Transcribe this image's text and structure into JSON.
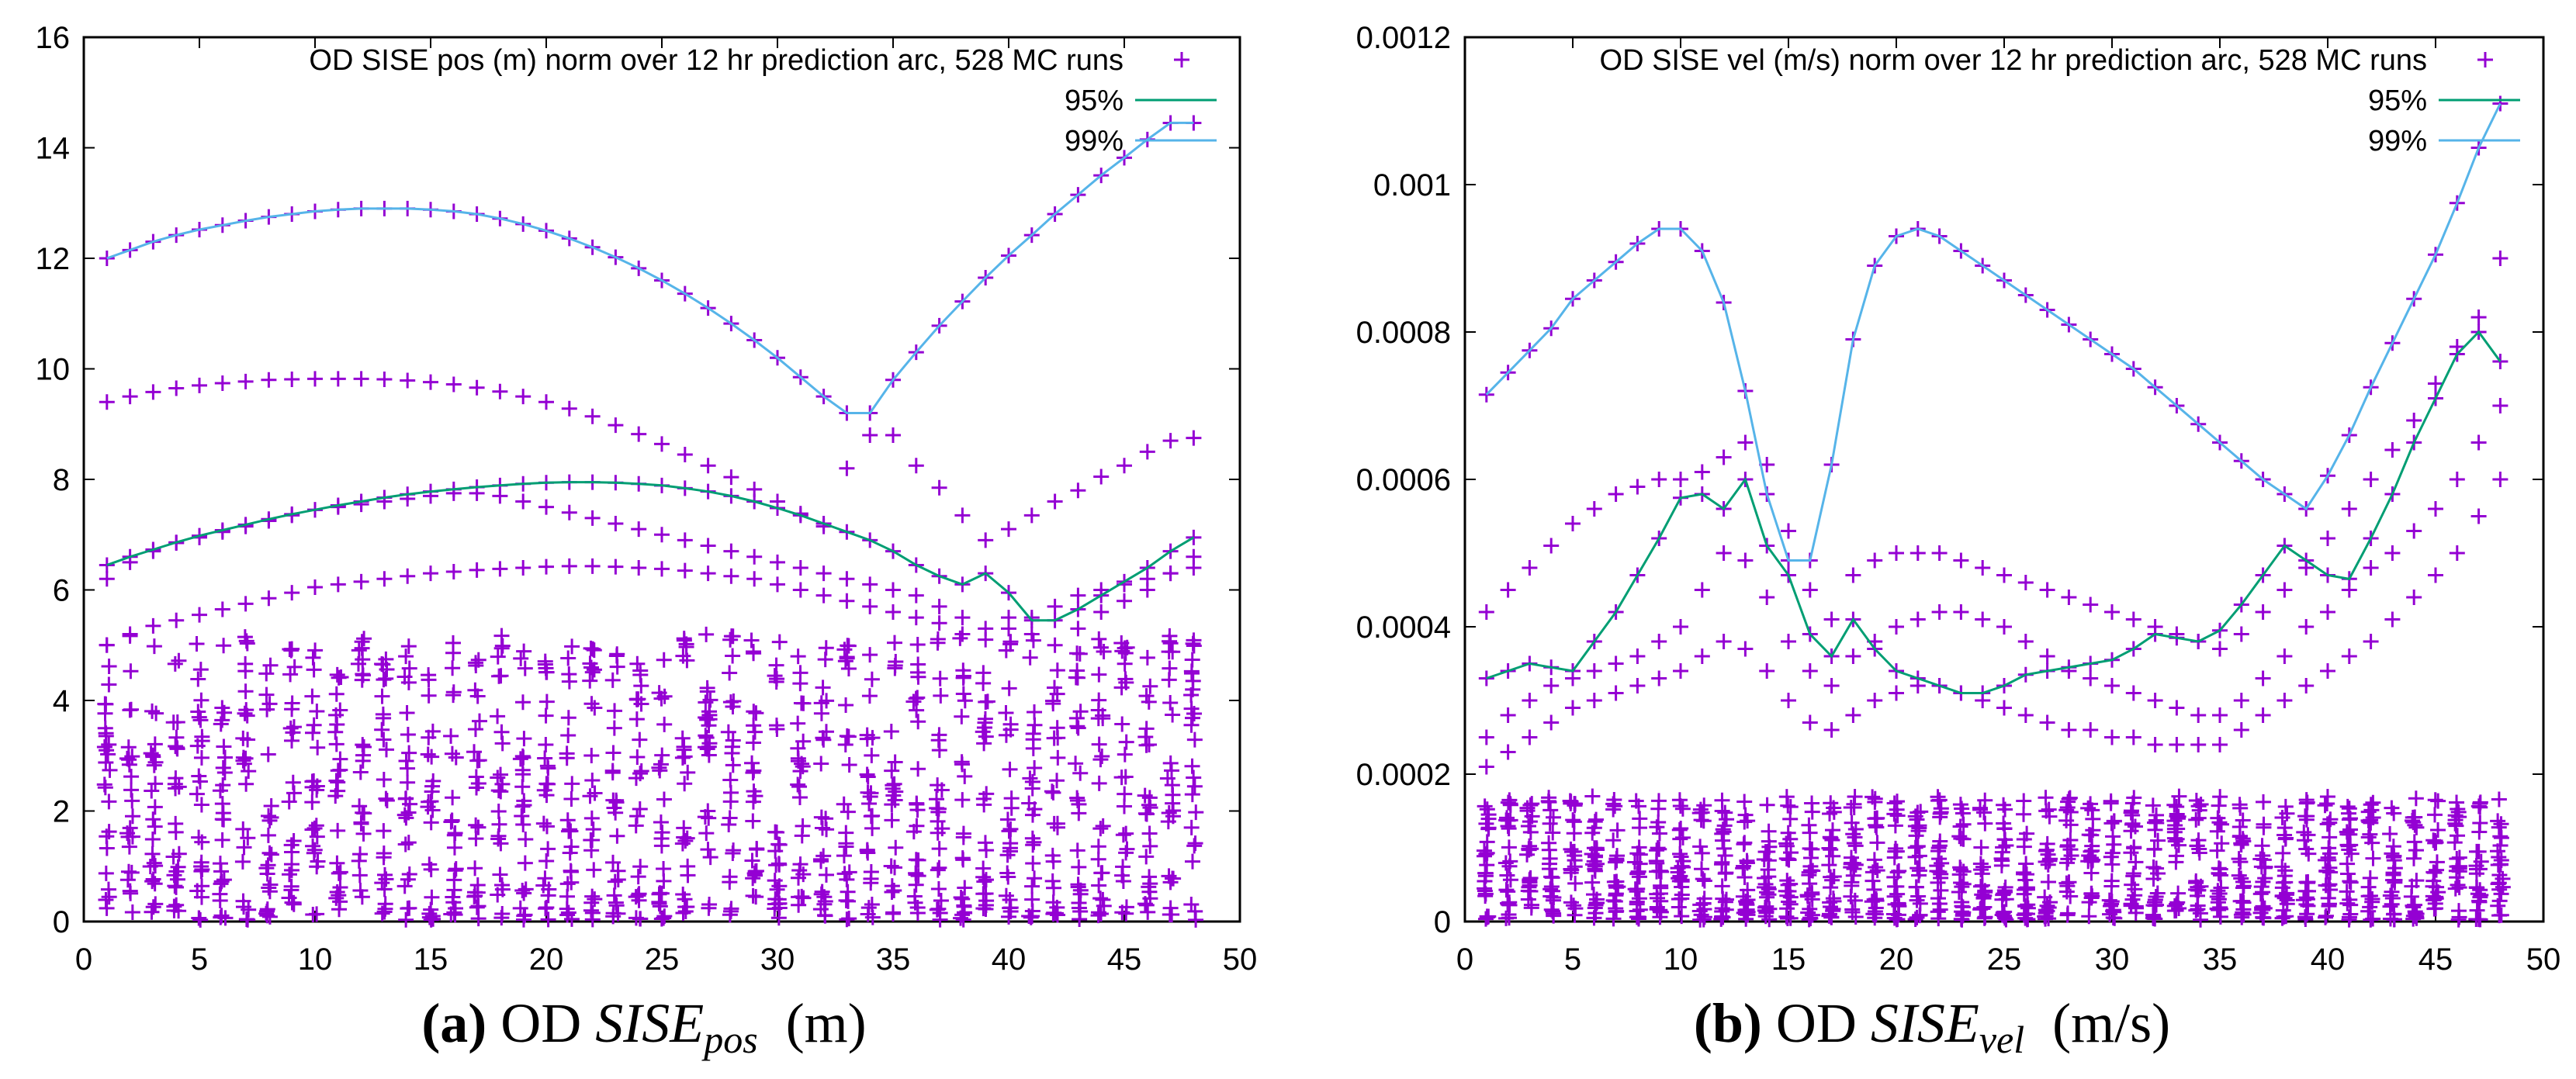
{
  "colors": {
    "points": "#9400D3",
    "p95": "#009E73",
    "p99": "#56B4E9",
    "axis": "#000000",
    "text": "#000000"
  },
  "charts": [
    {
      "type": "scatter",
      "title": "OD SISE pos (m) norm over 12 hr prediction arc, 528 MC runs",
      "legend": [
        "95%",
        "99%"
      ],
      "legend_placement": "top-right",
      "xlim": [
        0,
        50
      ],
      "ylim": [
        0,
        16
      ],
      "xticks": [
        0,
        5,
        10,
        15,
        20,
        25,
        30,
        35,
        40,
        45,
        50
      ],
      "yticks": [
        0,
        2,
        4,
        6,
        8,
        10,
        12,
        14,
        16
      ],
      "ytick_labels": [
        "0",
        "2",
        "4",
        "6",
        "8",
        "10",
        "12",
        "14",
        "16"
      ],
      "x": [
        1,
        2,
        3,
        4,
        5,
        6,
        7,
        8,
        9,
        10,
        11,
        12,
        13,
        14,
        15,
        16,
        17,
        18,
        19,
        20,
        21,
        22,
        23,
        24,
        25,
        26,
        27,
        28,
        29,
        30,
        31,
        32,
        33,
        34,
        35,
        36,
        37,
        38,
        39,
        40,
        41,
        42,
        43,
        44,
        45,
        46,
        47,
        48
      ],
      "p99": [
        12.0,
        12.15,
        12.3,
        12.42,
        12.52,
        12.6,
        12.68,
        12.75,
        12.8,
        12.85,
        12.88,
        12.9,
        12.9,
        12.9,
        12.88,
        12.85,
        12.8,
        12.72,
        12.62,
        12.5,
        12.36,
        12.2,
        12.02,
        11.82,
        11.6,
        11.36,
        11.1,
        10.82,
        10.52,
        10.2,
        9.85,
        9.5,
        9.2,
        9.2,
        9.8,
        10.3,
        10.78,
        11.22,
        11.65,
        12.05,
        12.42,
        12.8,
        13.15,
        13.5,
        13.82,
        14.15,
        14.45,
        14.45
      ],
      "p95": [
        6.45,
        6.6,
        6.73,
        6.86,
        6.98,
        7.08,
        7.18,
        7.28,
        7.37,
        7.45,
        7.53,
        7.6,
        7.67,
        7.73,
        7.78,
        7.82,
        7.86,
        7.89,
        7.92,
        7.94,
        7.95,
        7.95,
        7.94,
        7.92,
        7.89,
        7.84,
        7.78,
        7.7,
        7.6,
        7.48,
        7.35,
        7.2,
        7.05,
        6.9,
        6.7,
        6.45,
        6.25,
        6.1,
        6.3,
        5.95,
        5.45,
        5.45,
        5.65,
        5.9,
        6.15,
        6.4,
        6.7,
        6.95
      ],
      "extra_bands": [
        [
          9.4,
          9.5,
          9.58,
          9.65,
          9.7,
          9.74,
          9.77,
          9.8,
          9.81,
          9.82,
          9.82,
          9.82,
          9.81,
          9.79,
          9.76,
          9.72,
          9.66,
          9.59,
          9.5,
          9.4,
          9.28,
          9.14,
          8.98,
          8.82,
          8.64,
          8.45,
          8.25,
          8.04,
          7.82,
          7.6,
          7.38,
          7.15,
          8.2,
          8.8,
          8.8,
          8.25,
          7.85,
          7.35,
          6.9,
          7.1,
          7.35,
          7.6,
          7.8,
          8.05,
          8.25,
          8.5,
          8.7,
          8.75
        ],
        [
          6.2,
          6.5,
          6.7,
          6.85,
          6.95,
          7.05,
          7.15,
          7.25,
          7.35,
          7.45,
          7.5,
          7.55,
          7.6,
          7.65,
          7.7,
          7.75,
          7.75,
          7.7,
          7.6,
          7.5,
          7.4,
          7.3,
          7.2,
          7.1,
          7.0,
          6.9,
          6.8,
          6.7,
          6.6,
          6.5,
          6.4,
          6.3,
          6.2,
          6.1,
          6.0,
          5.9,
          5.7,
          5.5,
          5.3,
          5.5,
          5.2,
          5.0,
          5.3,
          5.6,
          5.8,
          6.0,
          6.3,
          6.6
        ],
        [
          5.0,
          5.2,
          5.35,
          5.45,
          5.55,
          5.65,
          5.75,
          5.85,
          5.95,
          6.05,
          6.1,
          6.15,
          6.2,
          6.25,
          6.3,
          6.33,
          6.36,
          6.38,
          6.4,
          6.42,
          6.43,
          6.43,
          6.42,
          6.4,
          6.38,
          6.35,
          6.3,
          6.25,
          6.2,
          6.1,
          6.0,
          5.9,
          5.8,
          5.7,
          5.6,
          5.5,
          5.4,
          5.2,
          5.1,
          5.3,
          5.5,
          5.7,
          5.9,
          6.0,
          6.1,
          6.2,
          6.3,
          6.4
        ]
      ],
      "dense_max": 5.2
    },
    {
      "type": "scatter",
      "title": "OD SISE vel (m/s) norm over 12 hr prediction arc, 528 MC runs",
      "legend": [
        "95%",
        "99%"
      ],
      "legend_placement": "top-right",
      "xlim": [
        0,
        50
      ],
      "ylim": [
        0,
        0.0012
      ],
      "xticks": [
        0,
        5,
        10,
        15,
        20,
        25,
        30,
        35,
        40,
        45,
        50
      ],
      "yticks": [
        0,
        0.0002,
        0.0004,
        0.0006,
        0.0008,
        0.001,
        0.0012
      ],
      "ytick_labels": [
        "0",
        "0.0002",
        "0.0004",
        "0.0006",
        "0.0008",
        "0.001",
        "0.0012"
      ],
      "x": [
        1,
        2,
        3,
        4,
        5,
        6,
        7,
        8,
        9,
        10,
        11,
        12,
        13,
        14,
        15,
        16,
        17,
        18,
        19,
        20,
        21,
        22,
        23,
        24,
        25,
        26,
        27,
        28,
        29,
        30,
        31,
        32,
        33,
        34,
        35,
        36,
        37,
        38,
        39,
        40,
        41,
        42,
        43,
        44,
        45,
        46,
        47,
        48
      ],
      "p99": [
        0.000715,
        0.000745,
        0.000775,
        0.000805,
        0.000845,
        0.00087,
        0.000895,
        0.00092,
        0.00094,
        0.00094,
        0.00091,
        0.00084,
        0.00072,
        0.00058,
        0.00049,
        0.00049,
        0.00062,
        0.00079,
        0.00089,
        0.00093,
        0.00094,
        0.00093,
        0.00091,
        0.00089,
        0.00087,
        0.00085,
        0.00083,
        0.00081,
        0.00079,
        0.00077,
        0.00075,
        0.000725,
        0.0007,
        0.000675,
        0.00065,
        0.000625,
        0.0006,
        0.00058,
        0.00056,
        0.000605,
        0.00066,
        0.000725,
        0.000785,
        0.000845,
        0.000905,
        0.000975,
        0.00105,
        0.00111
      ],
      "p95": [
        0.00033,
        0.00034,
        0.00035,
        0.000345,
        0.00034,
        0.00038,
        0.00042,
        0.00047,
        0.00052,
        0.000575,
        0.00058,
        0.00056,
        0.0006,
        0.00051,
        0.00047,
        0.00039,
        0.00036,
        0.00041,
        0.00037,
        0.00034,
        0.00033,
        0.00032,
        0.00031,
        0.00031,
        0.00032,
        0.000335,
        0.00034,
        0.000345,
        0.00035,
        0.000355,
        0.00037,
        0.00039,
        0.000385,
        0.00038,
        0.000395,
        0.00043,
        0.00047,
        0.00051,
        0.00049,
        0.00047,
        0.000465,
        0.00052,
        0.00058,
        0.00065,
        0.00071,
        0.00077,
        0.0008,
        0.00076
      ],
      "extra_bands": [
        [
          0.00042,
          0.00045,
          0.00048,
          0.00051,
          0.00054,
          0.00056,
          0.00058,
          0.00059,
          0.0006,
          0.0006,
          0.00061,
          0.00063,
          0.00065,
          0.00062,
          0.00053,
          0.00045,
          0.00041,
          0.00047,
          0.00049,
          0.0005,
          0.0005,
          0.0005,
          0.00049,
          0.00048,
          0.00047,
          0.00046,
          0.00045,
          0.00044,
          0.00043,
          0.00042,
          0.00041,
          0.0004,
          0.00039,
          0.00038,
          0.00037,
          0.00039,
          0.00042,
          0.00045,
          0.00048,
          0.00052,
          0.00056,
          0.0006,
          0.00064,
          0.00068,
          0.00073,
          0.00078,
          0.00082,
          0.0009
        ],
        [
          0.00025,
          0.00028,
          0.0003,
          0.00032,
          0.00033,
          0.00034,
          0.00035,
          0.00036,
          0.00038,
          0.0004,
          0.00045,
          0.0005,
          0.00049,
          0.00044,
          0.00038,
          0.00034,
          0.00032,
          0.00036,
          0.00038,
          0.0004,
          0.00041,
          0.00042,
          0.00042,
          0.00041,
          0.0004,
          0.00038,
          0.00036,
          0.00034,
          0.00033,
          0.00032,
          0.00031,
          0.0003,
          0.00029,
          0.00028,
          0.00028,
          0.0003,
          0.00033,
          0.00036,
          0.0004,
          0.00042,
          0.00045,
          0.00048,
          0.0005,
          0.00053,
          0.00056,
          0.0006,
          0.00065,
          0.0007
        ],
        [
          0.00021,
          0.00023,
          0.00025,
          0.00027,
          0.00029,
          0.0003,
          0.00031,
          0.00032,
          0.00033,
          0.00034,
          0.00036,
          0.00038,
          0.00037,
          0.00034,
          0.0003,
          0.00027,
          0.00026,
          0.00028,
          0.0003,
          0.00031,
          0.00032,
          0.00032,
          0.00031,
          0.0003,
          0.00029,
          0.00028,
          0.00027,
          0.00026,
          0.00026,
          0.00025,
          0.00025,
          0.00024,
          0.00024,
          0.00024,
          0.00024,
          0.00026,
          0.00028,
          0.0003,
          0.00032,
          0.00034,
          0.00036,
          0.00038,
          0.00041,
          0.00044,
          0.00047,
          0.0005,
          0.00055,
          0.0006
        ]
      ],
      "dense_max": 0.00017
    }
  ],
  "captions": [
    {
      "label": "(a)",
      "prefix": "OD",
      "symbol": "SISE",
      "subscript": "pos",
      "unit": "(m)"
    },
    {
      "label": "(b)",
      "prefix": "OD",
      "symbol": "SISE",
      "subscript": "vel",
      "unit": "(m/s)"
    }
  ]
}
